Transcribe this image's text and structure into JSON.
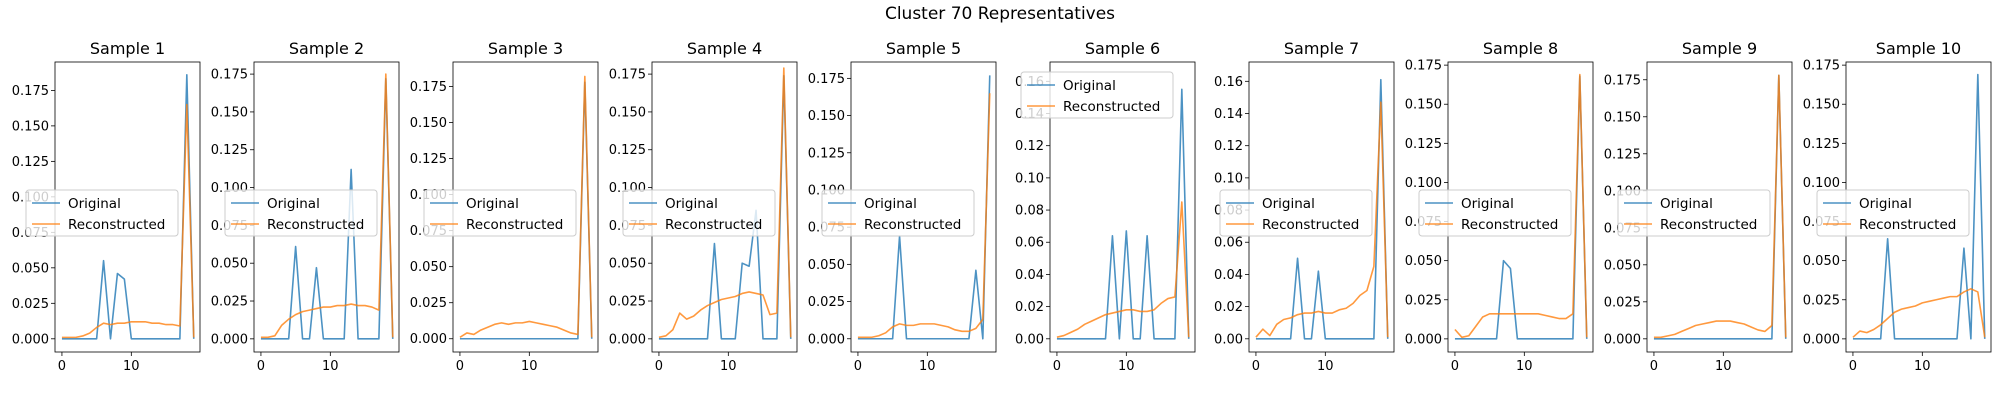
{
  "suptitle": "Cluster 70 Representatives",
  "legend": {
    "entries": [
      "Original",
      "Reconstructed"
    ],
    "location": "center-left"
  },
  "colors": {
    "original": "#1f77b4",
    "reconstructed": "#ff7f0e"
  },
  "chart_data": [
    {
      "type": "line",
      "title": "Sample 1",
      "xlabel": "",
      "ylabel": "",
      "xlim": [
        -1,
        19.9
      ],
      "ylim": [
        -0.0093,
        0.195
      ],
      "xticks": [
        0,
        10
      ],
      "yticks": [
        0.0,
        0.025,
        0.05,
        0.075,
        0.1,
        0.125,
        0.15,
        0.175
      ],
      "ytick_labels": [
        "0.000",
        "0.025",
        "0.050",
        "0.075",
        "0.100",
        "0.125",
        "0.150",
        "0.175"
      ],
      "x": [
        0,
        1,
        2,
        3,
        4,
        5,
        6,
        7,
        8,
        9,
        10,
        11,
        12,
        13,
        14,
        15,
        16,
        17,
        18,
        19
      ],
      "series": [
        {
          "name": "Original",
          "values": [
            0,
            0,
            0,
            0,
            0,
            0,
            0.055,
            0,
            0.046,
            0.042,
            0,
            0,
            0,
            0,
            0,
            0,
            0,
            0,
            0.186,
            0
          ]
        },
        {
          "name": "Reconstructed",
          "values": [
            0.001,
            0.001,
            0.001,
            0.002,
            0.004,
            0.008,
            0.011,
            0.01,
            0.011,
            0.011,
            0.012,
            0.012,
            0.012,
            0.011,
            0.011,
            0.01,
            0.01,
            0.009,
            0.165,
            0.001
          ]
        }
      ]
    },
    {
      "type": "line",
      "title": "Sample 2",
      "xlabel": "",
      "ylabel": "",
      "xlim": [
        -1,
        19.9
      ],
      "ylim": [
        -0.0087,
        0.183
      ],
      "xticks": [
        0,
        10
      ],
      "yticks": [
        0.0,
        0.025,
        0.05,
        0.075,
        0.1,
        0.125,
        0.15,
        0.175
      ],
      "ytick_labels": [
        "0.000",
        "0.025",
        "0.050",
        "0.075",
        "0.100",
        "0.125",
        "0.150",
        "0.175"
      ],
      "x": [
        0,
        1,
        2,
        3,
        4,
        5,
        6,
        7,
        8,
        9,
        10,
        11,
        12,
        13,
        14,
        15,
        16,
        17,
        18,
        19
      ],
      "series": [
        {
          "name": "Original",
          "values": [
            0,
            0,
            0,
            0,
            0,
            0.061,
            0,
            0,
            0.047,
            0,
            0,
            0,
            0,
            0.112,
            0,
            0,
            0,
            0,
            0.172,
            0
          ]
        },
        {
          "name": "Reconstructed",
          "values": [
            0.001,
            0.001,
            0.002,
            0.009,
            0.013,
            0.016,
            0.018,
            0.019,
            0.02,
            0.021,
            0.021,
            0.022,
            0.022,
            0.023,
            0.022,
            0.022,
            0.021,
            0.019,
            0.175,
            0.001
          ]
        }
      ]
    },
    {
      "type": "line",
      "title": "Sample 3",
      "xlabel": "",
      "ylabel": "",
      "xlim": [
        -1,
        19.9
      ],
      "ylim": [
        -0.0092,
        0.192
      ],
      "xticks": [
        0,
        10
      ],
      "yticks": [
        0.0,
        0.025,
        0.05,
        0.075,
        0.1,
        0.125,
        0.15,
        0.175
      ],
      "ytick_labels": [
        "0.000",
        "0.025",
        "0.050",
        "0.075",
        "0.100",
        "0.125",
        "0.150",
        "0.175"
      ],
      "x": [
        0,
        1,
        2,
        3,
        4,
        5,
        6,
        7,
        8,
        9,
        10,
        11,
        12,
        13,
        14,
        15,
        16,
        17,
        18,
        19
      ],
      "series": [
        {
          "name": "Original",
          "values": [
            0,
            0,
            0,
            0,
            0,
            0,
            0,
            0,
            0,
            0,
            0,
            0,
            0,
            0,
            0,
            0,
            0,
            0,
            0.178,
            0
          ]
        },
        {
          "name": "Reconstructed",
          "values": [
            0.001,
            0.004,
            0.003,
            0.006,
            0.008,
            0.01,
            0.011,
            0.01,
            0.011,
            0.011,
            0.012,
            0.011,
            0.01,
            0.009,
            0.008,
            0.006,
            0.004,
            0.003,
            0.182,
            0.001
          ]
        }
      ]
    },
    {
      "type": "line",
      "title": "Sample 4",
      "xlabel": "",
      "ylabel": "",
      "xlim": [
        -1,
        19.9
      ],
      "ylim": [
        -0.0087,
        0.183
      ],
      "xticks": [
        0,
        10
      ],
      "yticks": [
        0.0,
        0.025,
        0.05,
        0.075,
        0.1,
        0.125,
        0.15,
        0.175
      ],
      "ytick_labels": [
        "0.000",
        "0.025",
        "0.050",
        "0.075",
        "0.100",
        "0.125",
        "0.150",
        "0.175"
      ],
      "x": [
        0,
        1,
        2,
        3,
        4,
        5,
        6,
        7,
        8,
        9,
        10,
        11,
        12,
        13,
        14,
        15,
        16,
        17,
        18,
        19
      ],
      "series": [
        {
          "name": "Original",
          "values": [
            0,
            0,
            0,
            0,
            0,
            0,
            0,
            0,
            0.063,
            0,
            0,
            0,
            0.05,
            0.048,
            0.085,
            0,
            0,
            0,
            0.174,
            0
          ]
        },
        {
          "name": "Reconstructed",
          "values": [
            0.001,
            0.002,
            0.006,
            0.017,
            0.013,
            0.015,
            0.019,
            0.022,
            0.024,
            0.026,
            0.027,
            0.028,
            0.03,
            0.031,
            0.03,
            0.029,
            0.016,
            0.017,
            0.179,
            0.001
          ]
        }
      ]
    },
    {
      "type": "line",
      "title": "Sample 5",
      "xlabel": "",
      "ylabel": "",
      "xlim": [
        -1,
        19.9
      ],
      "ylim": [
        -0.0089,
        0.186
      ],
      "xticks": [
        0,
        10
      ],
      "yticks": [
        0.0,
        0.025,
        0.05,
        0.075,
        0.1,
        0.125,
        0.15,
        0.175
      ],
      "ytick_labels": [
        "0.000",
        "0.025",
        "0.050",
        "0.075",
        "0.100",
        "0.125",
        "0.150",
        "0.175"
      ],
      "x": [
        0,
        1,
        2,
        3,
        4,
        5,
        6,
        7,
        8,
        9,
        10,
        11,
        12,
        13,
        14,
        15,
        16,
        17,
        18,
        19
      ],
      "series": [
        {
          "name": "Original",
          "values": [
            0,
            0,
            0,
            0,
            0,
            0,
            0.069,
            0,
            0,
            0,
            0,
            0,
            0,
            0,
            0,
            0,
            0,
            0.046,
            0,
            0.177
          ]
        },
        {
          "name": "Reconstructed",
          "values": [
            0.001,
            0.001,
            0.001,
            0.002,
            0.004,
            0.008,
            0.01,
            0.009,
            0.009,
            0.01,
            0.01,
            0.01,
            0.009,
            0.008,
            0.006,
            0.005,
            0.005,
            0.007,
            0.013,
            0.165
          ]
        }
      ]
    },
    {
      "type": "line",
      "title": "Sample 6",
      "xlabel": "",
      "ylabel": "",
      "xlim": [
        -1,
        19.9
      ],
      "ylim": [
        -0.0082,
        0.172
      ],
      "xticks": [
        0,
        10
      ],
      "yticks": [
        0.0,
        0.02,
        0.04,
        0.06,
        0.08,
        0.1,
        0.12,
        0.14,
        0.16
      ],
      "ytick_labels": [
        "0.00",
        "0.02",
        "0.04",
        "0.06",
        "0.08",
        "0.10",
        "0.12",
        "0.14",
        "0.16"
      ],
      "x": [
        0,
        1,
        2,
        3,
        4,
        5,
        6,
        7,
        8,
        9,
        10,
        11,
        12,
        13,
        14,
        15,
        16,
        17,
        18,
        19
      ],
      "series": [
        {
          "name": "Original",
          "values": [
            0,
            0,
            0,
            0,
            0,
            0,
            0,
            0,
            0.064,
            0,
            0.067,
            0,
            0,
            0.064,
            0,
            0,
            0,
            0,
            0.155,
            0
          ]
        },
        {
          "name": "Reconstructed",
          "values": [
            0.001,
            0.002,
            0.004,
            0.006,
            0.009,
            0.011,
            0.013,
            0.015,
            0.016,
            0.017,
            0.018,
            0.018,
            0.017,
            0.017,
            0.018,
            0.022,
            0.025,
            0.026,
            0.085,
            0.001
          ]
        }
      ]
    },
    {
      "type": "line",
      "title": "Sample 7",
      "xlabel": "",
      "ylabel": "",
      "xlim": [
        -1,
        19.9
      ],
      "ylim": [
        -0.0082,
        0.172
      ],
      "xticks": [
        0,
        10
      ],
      "yticks": [
        0.0,
        0.02,
        0.04,
        0.06,
        0.08,
        0.1,
        0.12,
        0.14,
        0.16
      ],
      "ytick_labels": [
        "0.00",
        "0.02",
        "0.04",
        "0.06",
        "0.08",
        "0.10",
        "0.12",
        "0.14",
        "0.16"
      ],
      "x": [
        0,
        1,
        2,
        3,
        4,
        5,
        6,
        7,
        8,
        9,
        10,
        11,
        12,
        13,
        14,
        15,
        16,
        17,
        18,
        19
      ],
      "series": [
        {
          "name": "Original",
          "values": [
            0,
            0,
            0,
            0,
            0,
            0,
            0.05,
            0,
            0,
            0.042,
            0,
            0,
            0,
            0,
            0,
            0,
            0,
            0,
            0.161,
            0
          ]
        },
        {
          "name": "Reconstructed",
          "values": [
            0.001,
            0.006,
            0.002,
            0.009,
            0.012,
            0.013,
            0.015,
            0.016,
            0.016,
            0.017,
            0.016,
            0.016,
            0.018,
            0.019,
            0.022,
            0.027,
            0.03,
            0.045,
            0.147,
            0.001
          ]
        }
      ]
    },
    {
      "type": "line",
      "title": "Sample 8",
      "xlabel": "",
      "ylabel": "",
      "xlim": [
        -1,
        19.9
      ],
      "ylim": [
        -0.0084,
        0.177
      ],
      "xticks": [
        0,
        10
      ],
      "yticks": [
        0.0,
        0.025,
        0.05,
        0.075,
        0.1,
        0.125,
        0.15,
        0.175
      ],
      "ytick_labels": [
        "0.000",
        "0.025",
        "0.050",
        "0.075",
        "0.100",
        "0.125",
        "0.150",
        "0.175"
      ],
      "x": [
        0,
        1,
        2,
        3,
        4,
        5,
        6,
        7,
        8,
        9,
        10,
        11,
        12,
        13,
        14,
        15,
        16,
        17,
        18,
        19
      ],
      "series": [
        {
          "name": "Original",
          "values": [
            0,
            0,
            0,
            0,
            0,
            0,
            0,
            0.05,
            0.045,
            0,
            0,
            0,
            0,
            0,
            0,
            0,
            0,
            0,
            0.168,
            0
          ]
        },
        {
          "name": "Reconstructed",
          "values": [
            0.006,
            0.001,
            0.002,
            0.008,
            0.014,
            0.016,
            0.016,
            0.016,
            0.016,
            0.016,
            0.016,
            0.016,
            0.016,
            0.015,
            0.014,
            0.013,
            0.013,
            0.016,
            0.169,
            0.001
          ]
        }
      ]
    },
    {
      "type": "line",
      "title": "Sample 9",
      "xlabel": "",
      "ylabel": "",
      "xlim": [
        -1,
        19.9
      ],
      "ylim": [
        -0.0089,
        0.187
      ],
      "xticks": [
        0,
        10
      ],
      "yticks": [
        0.0,
        0.025,
        0.05,
        0.075,
        0.1,
        0.125,
        0.15,
        0.175
      ],
      "ytick_labels": [
        "0.000",
        "0.025",
        "0.050",
        "0.075",
        "0.100",
        "0.125",
        "0.150",
        "0.175"
      ],
      "x": [
        0,
        1,
        2,
        3,
        4,
        5,
        6,
        7,
        8,
        9,
        10,
        11,
        12,
        13,
        14,
        15,
        16,
        17,
        18,
        19
      ],
      "series": [
        {
          "name": "Original",
          "values": [
            0,
            0,
            0,
            0,
            0,
            0,
            0,
            0,
            0,
            0,
            0,
            0,
            0,
            0,
            0,
            0,
            0,
            0,
            0.178,
            0
          ]
        },
        {
          "name": "Reconstructed",
          "values": [
            0.001,
            0.001,
            0.002,
            0.003,
            0.005,
            0.007,
            0.009,
            0.01,
            0.011,
            0.012,
            0.012,
            0.012,
            0.011,
            0.01,
            0.008,
            0.006,
            0.005,
            0.009,
            0.178,
            0.001
          ]
        }
      ]
    },
    {
      "type": "line",
      "title": "Sample 10",
      "xlabel": "",
      "ylabel": "",
      "xlim": [
        -1,
        19.9
      ],
      "ylim": [
        -0.0084,
        0.177
      ],
      "xticks": [
        0,
        10
      ],
      "yticks": [
        0.0,
        0.025,
        0.05,
        0.075,
        0.1,
        0.125,
        0.15,
        0.175
      ],
      "ytick_labels": [
        "0.000",
        "0.025",
        "0.050",
        "0.075",
        "0.100",
        "0.125",
        "0.150",
        "0.175"
      ],
      "x": [
        0,
        1,
        2,
        3,
        4,
        5,
        6,
        7,
        8,
        9,
        10,
        11,
        12,
        13,
        14,
        15,
        16,
        17,
        18,
        19
      ],
      "series": [
        {
          "name": "Original",
          "values": [
            0,
            0,
            0,
            0,
            0,
            0.064,
            0,
            0,
            0,
            0,
            0,
            0,
            0,
            0,
            0,
            0,
            0.058,
            0,
            0.169,
            0
          ]
        },
        {
          "name": "Reconstructed",
          "values": [
            0.001,
            0.005,
            0.004,
            0.006,
            0.009,
            0.013,
            0.017,
            0.019,
            0.02,
            0.021,
            0.023,
            0.024,
            0.025,
            0.026,
            0.027,
            0.027,
            0.03,
            0.032,
            0.03,
            0.001
          ]
        }
      ]
    }
  ]
}
